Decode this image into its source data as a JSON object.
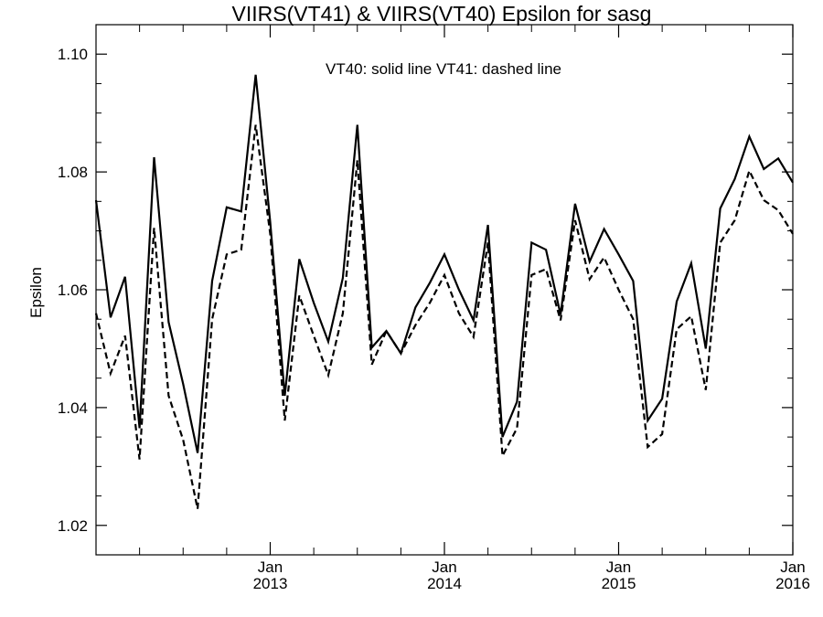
{
  "chart_data": {
    "type": "line",
    "title": "VIIRS(VT41) & VIIRS(VT40)  Epsilon for sasg",
    "annotation": "VT40: solid line   VT41: dashed line",
    "ylabel": "Epsilon",
    "xlabel": "",
    "ylim": [
      1.015,
      1.105
    ],
    "yticks": [
      "1.02",
      "1.04",
      "1.06",
      "1.08",
      "1.10"
    ],
    "xlim": [
      "2012-01",
      "2016-01"
    ],
    "xticks": [
      {
        "month": "Jan",
        "year": "2013",
        "date": "2013-01"
      },
      {
        "month": "Jan",
        "year": "2014",
        "date": "2014-01"
      },
      {
        "month": "Jan",
        "year": "2015",
        "date": "2015-01"
      },
      {
        "month": "Jan",
        "year": "2016",
        "date": "2016-01"
      }
    ],
    "grid": false,
    "x": [
      "2012-01",
      "2012-02",
      "2012-03",
      "2012-04",
      "2012-05",
      "2012-06",
      "2012-07",
      "2012-08",
      "2012-09",
      "2012-10",
      "2012-11",
      "2012-12",
      "2013-01",
      "2013-02",
      "2013-03",
      "2013-04",
      "2013-05",
      "2013-06",
      "2013-07",
      "2013-08",
      "2013-09",
      "2013-10",
      "2013-11",
      "2013-12",
      "2014-01",
      "2014-02",
      "2014-03",
      "2014-04",
      "2014-05",
      "2014-06",
      "2014-07",
      "2014-08",
      "2014-09",
      "2014-10",
      "2014-11",
      "2014-12",
      "2015-01",
      "2015-02",
      "2015-03",
      "2015-04",
      "2015-05",
      "2015-06",
      "2015-07",
      "2015-08",
      "2015-09",
      "2015-10",
      "2015-11",
      "2015-12",
      "2016-01"
    ],
    "series": [
      {
        "name": "VT40",
        "style": "solid",
        "color": "#000000",
        "values": [
          1.0752,
          1.0553,
          1.0622,
          1.0365,
          1.0825,
          1.0545,
          1.044,
          1.0323,
          1.0615,
          1.074,
          1.0733,
          1.0965,
          1.0715,
          1.042,
          1.0652,
          1.0578,
          1.0512,
          1.062,
          1.088,
          1.0502,
          1.053,
          1.0492,
          1.057,
          1.0612,
          1.066,
          1.06,
          1.0548,
          1.071,
          1.035,
          1.041,
          1.068,
          1.0668,
          1.0558,
          1.0746,
          1.0648,
          1.0703,
          1.066,
          1.0615,
          1.0378,
          1.0415,
          1.058,
          1.0645,
          1.05,
          1.0738,
          1.0788,
          1.086,
          1.0805,
          1.0823,
          1.0782
        ]
      },
      {
        "name": "VT41",
        "style": "dashed",
        "color": "#000000",
        "values": [
          1.056,
          1.0458,
          1.0522,
          1.0312,
          1.0705,
          1.042,
          1.0345,
          1.0228,
          1.055,
          1.066,
          1.0668,
          1.088,
          1.0695,
          1.0378,
          1.059,
          1.0522,
          1.0455,
          1.056,
          1.082,
          1.0473,
          1.053,
          1.0492,
          1.054,
          1.0578,
          1.0625,
          1.056,
          1.052,
          1.068,
          1.0318,
          1.0365,
          1.0625,
          1.0635,
          1.0548,
          1.0718,
          1.0618,
          1.0655,
          1.06,
          1.055,
          1.0333,
          1.0355,
          1.0533,
          1.0555,
          1.043,
          1.068,
          1.0718,
          1.0802,
          1.0752,
          1.0735,
          1.0695
        ]
      }
    ]
  }
}
